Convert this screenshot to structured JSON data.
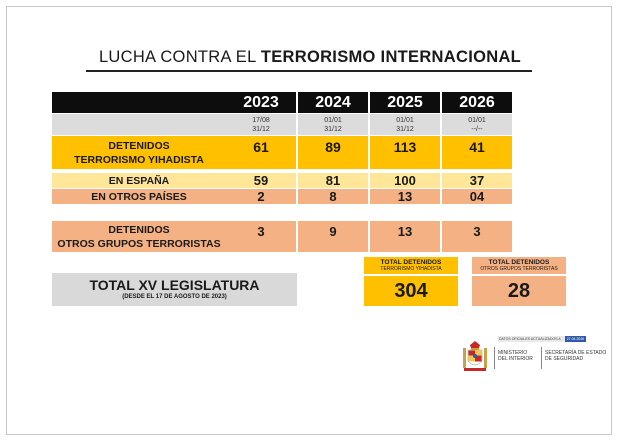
{
  "title_normal": "LUCHA CONTRA EL ",
  "title_bold": "TERRORISMO INTERNACIONAL",
  "years": [
    "2023",
    "2024",
    "2025",
    "2026"
  ],
  "periods": [
    {
      "from": "17/08",
      "to": "31/12"
    },
    {
      "from": "01/01",
      "to": "31/12"
    },
    {
      "from": "01/01",
      "to": "31/12"
    },
    {
      "from": "01/01",
      "to": "--/--"
    }
  ],
  "yihadista": {
    "label_1": "DETENIDOS",
    "label_2": "TERRORISMO YIHADISTA",
    "values": [
      "61",
      "89",
      "113",
      "41"
    ]
  },
  "espana": {
    "label": "EN ESPAÑA",
    "values": [
      "59",
      "81",
      "100",
      "37"
    ]
  },
  "otros_paises": {
    "label": "EN OTROS PAÍSES",
    "values": [
      "2",
      "8",
      "13",
      "04"
    ]
  },
  "otros_grupos": {
    "label_1": "DETENIDOS",
    "label_2": "OTROS GRUPOS TERRORISTAS",
    "values": [
      "3",
      "9",
      "13",
      "3"
    ]
  },
  "total_legislatura": {
    "label": "TOTAL XV LEGISLATURA",
    "sub": "(DESDE EL 17 DE AGOSTO DE 2023)"
  },
  "total_yihadista": {
    "head_1": "TOTAL DETENIDOS",
    "head_2": "TERRORISMO YIHADISTA",
    "value": "304"
  },
  "total_otros": {
    "head_1": "TOTAL DETENIDOS",
    "head_2": "OTROS GRUPOS TERRORISTAS",
    "value": "28"
  },
  "footer": {
    "datos_label": "DATOS OFICIALES ACTUALIZADOS A",
    "datos_date": "27.04.2026",
    "ministerio_1": "MINISTERIO",
    "ministerio_2": "DEL INTERIOR",
    "secretaria_1": "SECRETARÍA DE ESTADO",
    "secretaria_2": "DE SEGURIDAD"
  },
  "colors": {
    "header": "#0d0d0d",
    "yellow": "#ffc000",
    "light_yellow": "#ffe699",
    "orange": "#f4b183",
    "gray": "#d9d9d9",
    "blue": "#2e5aa8"
  }
}
